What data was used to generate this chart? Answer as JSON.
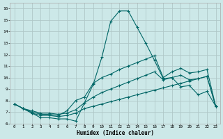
{
  "xlabel": "Humidex (Indice chaleur)",
  "background_color": "#cce8e8",
  "grid_color": "#b0c8c8",
  "line_color": "#006666",
  "xlim": [
    -0.5,
    23.5
  ],
  "ylim": [
    6.0,
    16.5
  ],
  "xticks": [
    0,
    1,
    2,
    3,
    4,
    5,
    6,
    7,
    8,
    9,
    10,
    11,
    12,
    13,
    14,
    15,
    16,
    17,
    18,
    19,
    20,
    21,
    22,
    23
  ],
  "yticks": [
    6,
    7,
    8,
    9,
    10,
    11,
    12,
    13,
    14,
    15,
    16
  ],
  "series": [
    [
      7.7,
      7.3,
      6.9,
      6.5,
      6.5,
      6.4,
      6.4,
      6.2,
      7.8,
      9.4,
      11.8,
      14.9,
      15.8,
      15.8,
      14.4,
      13.0,
      11.5,
      9.9,
      10.0,
      9.2,
      9.3,
      8.5,
      8.8,
      7.5
    ],
    [
      7.7,
      7.3,
      7.0,
      6.8,
      6.8,
      6.7,
      7.1,
      8.0,
      8.3,
      9.5,
      10.0,
      10.3,
      10.7,
      11.0,
      11.3,
      11.6,
      11.9,
      10.0,
      10.5,
      10.8,
      10.4,
      10.5,
      10.7,
      7.5
    ],
    [
      7.7,
      7.3,
      7.1,
      6.9,
      6.9,
      6.8,
      6.9,
      7.2,
      7.8,
      8.3,
      8.7,
      9.0,
      9.3,
      9.6,
      9.9,
      10.2,
      10.5,
      9.8,
      10.0,
      10.2,
      9.8,
      9.9,
      10.1,
      7.5
    ],
    [
      7.7,
      7.3,
      6.9,
      6.7,
      6.7,
      6.6,
      6.7,
      6.9,
      7.3,
      7.5,
      7.7,
      7.9,
      8.1,
      8.3,
      8.5,
      8.7,
      8.9,
      9.1,
      9.3,
      9.5,
      9.7,
      9.9,
      10.1,
      7.5
    ]
  ]
}
